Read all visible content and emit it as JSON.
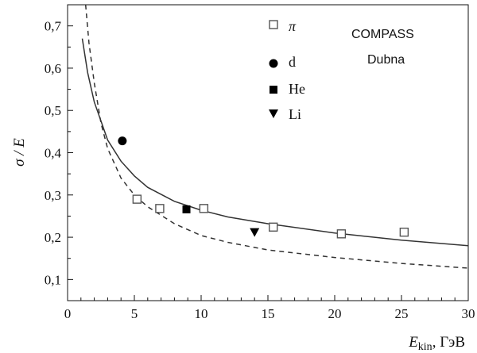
{
  "chart_data": {
    "type": "scatter",
    "xlabel": {
      "main": "E",
      "sub": "kin",
      "unit": ", ГэВ"
    },
    "ylabel": "σ / E",
    "xlim": [
      0,
      30
    ],
    "ylim": [
      0.05,
      0.75
    ],
    "xticks": [
      0,
      5,
      10,
      15,
      20,
      25,
      30
    ],
    "xtick_labels": [
      "0",
      "5",
      "10",
      "15",
      "20",
      "25",
      "30"
    ],
    "yticks": [
      0.1,
      0.2,
      0.3,
      0.4,
      0.5,
      0.6,
      0.7
    ],
    "ytick_labels": [
      "0,1",
      "0,2",
      "0,3",
      "0,4",
      "0,5",
      "0,6",
      "0,7"
    ],
    "grid": false,
    "annotations": [
      "COMPASS",
      "Dubna"
    ],
    "series": [
      {
        "name": "π",
        "marker": "open-square",
        "points": [
          [
            5.2,
            0.29
          ],
          [
            6.9,
            0.268
          ],
          [
            10.2,
            0.268
          ],
          [
            15.4,
            0.224
          ],
          [
            20.5,
            0.208
          ],
          [
            25.2,
            0.212
          ]
        ]
      },
      {
        "name": "d",
        "marker": "filled-circle",
        "points": [
          [
            4.1,
            0.428
          ]
        ]
      },
      {
        "name": "He",
        "marker": "filled-square",
        "points": [
          [
            8.9,
            0.266
          ]
        ]
      },
      {
        "name": "Li",
        "marker": "filled-triangle-down",
        "points": [
          [
            14.0,
            0.212
          ]
        ]
      }
    ],
    "curves": [
      {
        "style": "solid",
        "points": [
          [
            1.1,
            0.67
          ],
          [
            1.5,
            0.59
          ],
          [
            2.0,
            0.52
          ],
          [
            3.0,
            0.43
          ],
          [
            4.0,
            0.38
          ],
          [
            5.0,
            0.345
          ],
          [
            6.0,
            0.318
          ],
          [
            8.0,
            0.285
          ],
          [
            10.0,
            0.264
          ],
          [
            12.0,
            0.248
          ],
          [
            15.0,
            0.232
          ],
          [
            20.0,
            0.21
          ],
          [
            25.0,
            0.193
          ],
          [
            30.0,
            0.18
          ]
        ]
      },
      {
        "style": "dashed",
        "points": [
          [
            1.35,
            0.75
          ],
          [
            1.6,
            0.66
          ],
          [
            2.0,
            0.565
          ],
          [
            2.5,
            0.47
          ],
          [
            3.0,
            0.41
          ],
          [
            4.0,
            0.34
          ],
          [
            5.0,
            0.3
          ],
          [
            6.0,
            0.272
          ],
          [
            8.0,
            0.232
          ],
          [
            10.0,
            0.204
          ],
          [
            12.0,
            0.188
          ],
          [
            15.0,
            0.17
          ],
          [
            20.0,
            0.152
          ],
          [
            25.0,
            0.138
          ],
          [
            30.0,
            0.127
          ]
        ]
      }
    ],
    "colors": {
      "axis": "#111111",
      "curve": "#333333",
      "open_marker_stroke": "#555555",
      "filled_marker": "#000000"
    }
  }
}
